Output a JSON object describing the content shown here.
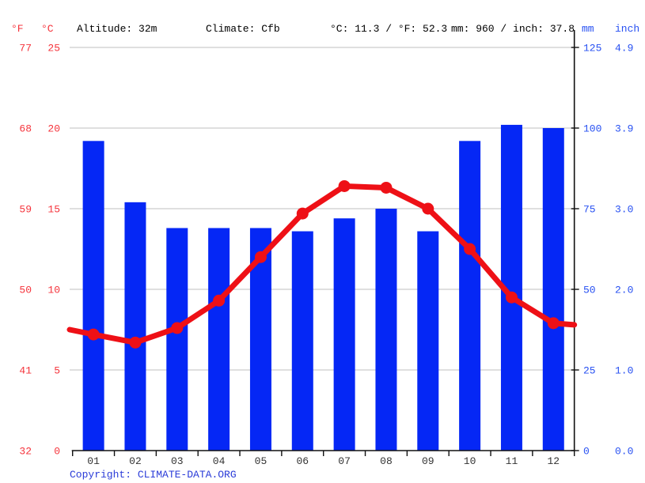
{
  "header": {
    "f_label": "°F",
    "c_label": "°C",
    "altitude": "Altitude: 32m",
    "climate": "Climate: Cfb",
    "temp_summary": "°C: 11.3 / °F: 52.3",
    "precip_summary": "mm: 960 / inch: 37.8",
    "mm_label": "mm",
    "inch_label": "inch"
  },
  "footer": {
    "copyright_prefix": "Copyright: ",
    "copyright_link": "CLIMATE-DATA.ORG"
  },
  "colors": {
    "bar_blue": "#0527f5",
    "line_red": "#ee1016",
    "grid_gray": "#cccccc",
    "axis_black": "#111111",
    "red_text": "#f5333b",
    "blue_text": "#2750f2",
    "copyright_blue": "#2b3cd8",
    "month_text": "#333333"
  },
  "chart_data": {
    "type": "bar",
    "title": "Climate graph: monthly precipitation (bars) and mean temperature (line)",
    "categories": [
      "01",
      "02",
      "03",
      "04",
      "05",
      "06",
      "07",
      "08",
      "09",
      "10",
      "11",
      "12"
    ],
    "series": [
      {
        "name": "Precipitation",
        "type": "bar",
        "unit": "mm",
        "values": [
          96,
          77,
          69,
          69,
          69,
          68,
          72,
          75,
          68,
          96,
          101,
          100
        ]
      },
      {
        "name": "Temperature",
        "type": "line",
        "unit": "°C",
        "values": [
          7.2,
          6.7,
          7.6,
          9.3,
          12.0,
          14.7,
          16.4,
          16.3,
          15.0,
          12.5,
          9.5,
          7.9
        ]
      }
    ],
    "line_edge_values_c": {
      "left": 7.5,
      "right": 7.8
    },
    "temp_axis": {
      "c": [
        25,
        20,
        15,
        10,
        5,
        0
      ],
      "f": [
        77,
        68,
        59,
        50,
        41,
        32
      ],
      "range_c": [
        0,
        25
      ]
    },
    "precip_axis": {
      "mm": [
        125,
        100,
        75,
        50,
        25,
        0
      ],
      "inch": [
        "4.9",
        "3.9",
        "3.0",
        "2.0",
        "1.0",
        "0.0"
      ],
      "range_mm": [
        0,
        125
      ]
    },
    "xlabel": "",
    "ylabel_left": "°F / °C",
    "ylabel_right": "mm / inch",
    "grid": true,
    "legend": false
  }
}
